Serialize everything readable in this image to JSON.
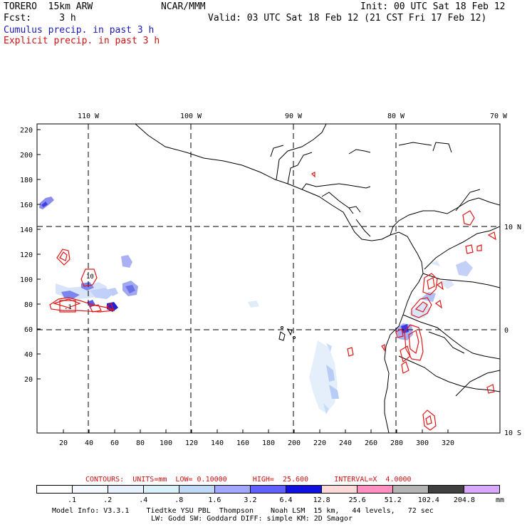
{
  "header": {
    "line1_left": "TORERO  15km ARW",
    "line1_center": "NCAR/MMM",
    "line1_right": "Init: 00 UTC Sat 18 Feb 12",
    "line2_left": "Fcst:     3 h",
    "line2_right": "Valid: 03 UTC Sat 18 Feb 12 (21 CST Fri 17 Feb 12)",
    "cumulus_label": "Cumulus precip. in past 3 h",
    "explicit_label": "Explicit precip. in past 3 h"
  },
  "map": {
    "top_lon_labels": [
      "110 W",
      "100 W",
      "90 W",
      "80 W",
      "70 W"
    ],
    "right_lat_labels": [
      "10 N",
      "0",
      "10 S"
    ],
    "y_ticks": [
      "220",
      "200",
      "180",
      "160",
      "140",
      "120",
      "100",
      "80",
      "60",
      "40",
      "20"
    ],
    "x_ticks": [
      "20",
      "40",
      "60",
      "80",
      "100",
      "120",
      "140",
      "160",
      "180",
      "200",
      "220",
      "240",
      "260",
      "280",
      "300",
      "320"
    ],
    "contour_labels": [
      "10",
      ".1"
    ]
  },
  "footer": {
    "contours_line": "CONTOURS:  UNITS=mm  LOW= 0.10000      HIGH=  25.600      INTERVAL=X  4.0000",
    "colorbar_labels": [
      ".1",
      ".2",
      ".4",
      ".8",
      "1.6",
      "3.2",
      "6.4",
      "12.8",
      "25.6",
      "51.2",
      "102.4",
      "204.8"
    ],
    "colorbar_unit": "mm",
    "colorbar_colors": [
      "#ffffff",
      "#f4f8ff",
      "#e6f0ff",
      "#d8f0f8",
      "#c0d8f8",
      "#a0a8ff",
      "#6060ff",
      "#1010e0",
      "#ffd8d8",
      "#ff90c0",
      "#b4b4b4",
      "#404040",
      "#d8a8ff"
    ],
    "model_info_line1": "Model Info: V3.3.1    Tiedtke YSU PBL  Thompson    Noah LSM  15 km,   44 levels,   72 sec",
    "model_info_line2": "LW: Godd SW: Goddard DIFF: simple KM: 2D Smagor"
  }
}
